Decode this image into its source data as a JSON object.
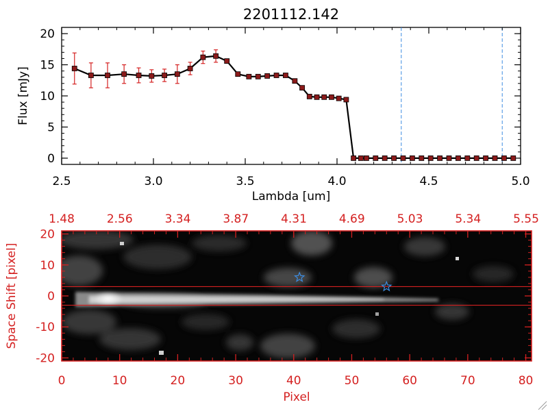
{
  "colors": {
    "spectrum_line": "#000000",
    "error_bar": "#d42020",
    "marker": "#8b1a1a",
    "cut_line": "#3c8ce0",
    "image_axes": "#d42020",
    "star": "#3c8ce0"
  },
  "chart_data": [
    {
      "type": "line",
      "title": "2201112.142",
      "xlabel": "Lambda [um]",
      "ylabel": "Flux [mJy]",
      "xlim": [
        2.5,
        5.0
      ],
      "ylim": [
        -1,
        21
      ],
      "xticks": [
        "2.5",
        "3.0",
        "3.5",
        "4.0",
        "4.5",
        "5.0"
      ],
      "yticks": [
        "0",
        "5",
        "10",
        "15",
        "20"
      ],
      "grid": false,
      "series": [
        {
          "x": [
            2.57,
            2.66,
            2.75,
            2.84,
            2.92,
            2.99,
            3.06,
            3.13,
            3.2,
            3.27,
            3.34,
            3.4,
            3.46,
            3.52,
            3.57,
            3.62,
            3.67,
            3.72,
            3.77,
            3.81,
            3.85,
            3.89,
            3.93,
            3.97,
            4.01,
            4.05,
            4.09,
            4.13,
            4.16,
            4.21,
            4.26,
            4.31,
            4.36,
            4.41,
            4.46,
            4.51,
            4.56,
            4.61,
            4.66,
            4.71,
            4.76,
            4.81,
            4.86,
            4.91,
            4.96
          ],
          "y": [
            14.4,
            13.3,
            13.3,
            13.5,
            13.3,
            13.2,
            13.3,
            13.5,
            14.4,
            16.2,
            16.4,
            15.6,
            13.5,
            13.1,
            13.1,
            13.2,
            13.3,
            13.3,
            12.4,
            11.3,
            9.9,
            9.8,
            9.8,
            9.8,
            9.6,
            9.4,
            0,
            0,
            0,
            0,
            0,
            0,
            0,
            0,
            0,
            0,
            0,
            0,
            0,
            0,
            0,
            0,
            0,
            0,
            0
          ],
          "yerr": [
            2.5,
            2.0,
            2.0,
            1.5,
            1.2,
            1.0,
            1.0,
            1.5,
            1.0,
            1.0,
            1.0,
            0,
            0,
            0,
            0,
            0,
            0,
            0,
            0,
            0,
            0,
            0,
            0,
            0,
            0,
            0,
            0,
            0,
            0,
            0,
            0,
            0,
            0,
            0,
            0,
            0,
            0,
            0,
            0,
            0,
            0,
            0,
            0,
            0,
            0
          ]
        }
      ],
      "vertical_lines_x": [
        4.35,
        4.9
      ]
    },
    {
      "type": "heatmap",
      "xlabel": "Pixel",
      "ylabel": "Space Shift [pixel]",
      "xlim": [
        0,
        81
      ],
      "ylim": [
        -21,
        21
      ],
      "xticks": [
        "0",
        "10",
        "20",
        "30",
        "40",
        "50",
        "60",
        "70",
        "80"
      ],
      "yticks": [
        "-20",
        "-10",
        "0",
        "10",
        "20"
      ],
      "top_axis_ticks": [
        "1.48",
        "2.56",
        "3.34",
        "3.87",
        "4.31",
        "4.69",
        "5.03",
        "5.34",
        "5.55"
      ],
      "horizontal_lines_y": [
        3,
        -3
      ],
      "star_markers": [
        {
          "x": 41,
          "y": 6
        },
        {
          "x": 56,
          "y": 3
        }
      ]
    }
  ]
}
